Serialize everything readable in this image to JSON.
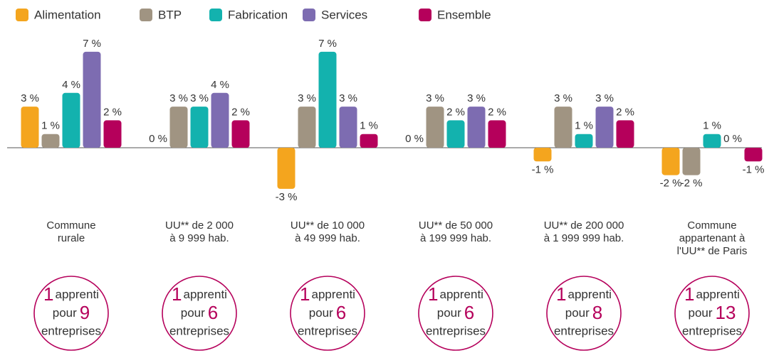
{
  "chart_data": {
    "type": "bar",
    "categories": [
      [
        "Commune",
        "rurale"
      ],
      [
        "UU** de 2 000",
        "à 9 999 hab."
      ],
      [
        "UU** de 10 000",
        "à 49 999 hab."
      ],
      [
        "UU** de 50 000",
        "à 199 999 hab."
      ],
      [
        "UU** de 200 000",
        "à 1 999 999 hab."
      ],
      [
        "Commune",
        "appartenant à",
        "l'UU** de Paris"
      ]
    ],
    "series": [
      {
        "name": "Alimentation",
        "color": "#f4a51e",
        "values": [
          3,
          0,
          -3,
          0,
          -1,
          -2
        ],
        "value_labels": [
          "3 %",
          "0 %",
          "-3 %",
          "0 %",
          "-1 %",
          "-2 %"
        ]
      },
      {
        "name": "BTP",
        "color": "#a09482",
        "values": [
          1,
          3,
          3,
          3,
          3,
          -2
        ],
        "value_labels": [
          "1 %",
          "3 %",
          "3 %",
          "3 %",
          "3 %",
          "-2 %"
        ]
      },
      {
        "name": "Fabrication",
        "color": "#13b2ae",
        "values": [
          4,
          3,
          7,
          2,
          1,
          1
        ],
        "value_labels": [
          "4 %",
          "3 %",
          "7 %",
          "2 %",
          "1 %",
          "1 %"
        ]
      },
      {
        "name": "Services",
        "color": "#7d6cb1",
        "values": [
          7,
          4,
          3,
          3,
          3,
          0
        ],
        "value_labels": [
          "7 %",
          "4 %",
          "3 %",
          "3 %",
          "3 %",
          "0 %"
        ]
      },
      {
        "name": "Ensemble",
        "color": "#b5005b",
        "values": [
          2,
          2,
          1,
          2,
          2,
          -1
        ],
        "value_labels": [
          "2 %",
          "2 %",
          "1 %",
          "2 %",
          "2 %",
          "-1 %"
        ]
      }
    ],
    "ratios": [
      {
        "apprentis": 1,
        "unit": "apprenti",
        "per": "pour",
        "entreprises": 9,
        "noun": "entreprises"
      },
      {
        "apprentis": 1,
        "unit": "apprenti",
        "per": "pour",
        "entreprises": 6,
        "noun": "entreprises"
      },
      {
        "apprentis": 1,
        "unit": "apprenti",
        "per": "pour",
        "entreprises": 6,
        "noun": "entreprises"
      },
      {
        "apprentis": 1,
        "unit": "apprenti",
        "per": "pour",
        "entreprises": 6,
        "noun": "entreprises"
      },
      {
        "apprentis": 1,
        "unit": "apprenti",
        "per": "pour",
        "entreprises": 8,
        "noun": "entreprises"
      },
      {
        "apprentis": 1,
        "unit": "apprenti",
        "per": "pour",
        "entreprises": 13,
        "noun": "entreprises"
      }
    ]
  }
}
